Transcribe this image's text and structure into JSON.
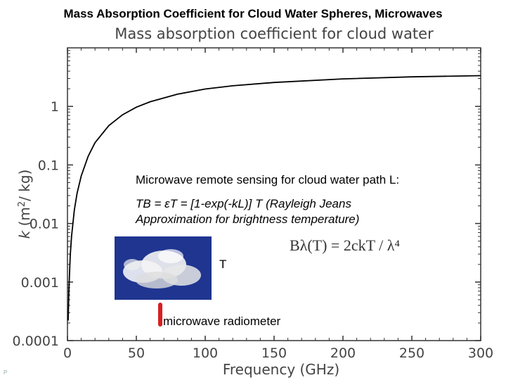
{
  "slide_title": "Mass Absorption Coefficient for Cloud Water Spheres, Microwaves",
  "figure_title": "Mass absorption coefficient for cloud water",
  "note": {
    "heading": "Microwave remote sensing for cloud water path L:",
    "equation_line1": "TB = εT = [1-exp(-kL)] T  (Rayleigh Jeans",
    "equation_line2": "Approximation for brightness temperature)",
    "formula": "Bλ(T) = 2ckT / λ⁴",
    "temperature_label": "T",
    "radiometer_label": "microwave radiometer"
  },
  "footer_mark": "P",
  "colors": {
    "curve": "#000000",
    "axis": "#333333",
    "text": "#444444",
    "photo_bg": "#1f3590",
    "radiometer": "#d62020"
  },
  "chart_data": {
    "type": "line",
    "title": "Mass absorption coefficient for cloud water",
    "xlabel": "Frequency (GHz)",
    "ylabel": "k (m2/ kg)",
    "xscale": "linear",
    "yscale": "log",
    "xlim": [
      0,
      300
    ],
    "ylim": [
      0.0001,
      10
    ],
    "x_ticks": [
      0,
      50,
      100,
      150,
      200,
      250,
      300
    ],
    "x_tick_labels": [
      "0",
      "50",
      "100",
      "150",
      "200",
      "250",
      "300"
    ],
    "y_ticks": [
      0.0001,
      0.001,
      0.01,
      0.1,
      1
    ],
    "y_tick_labels": [
      "0.0001",
      "0.001",
      "0.01",
      "0.1",
      "1"
    ],
    "series": [
      {
        "name": "cloud water",
        "x": [
          0.5,
          1,
          2,
          3,
          5,
          7,
          10,
          15,
          20,
          30,
          40,
          50,
          60,
          80,
          100,
          120,
          150,
          200,
          250,
          300
        ],
        "y": [
          0.00022,
          0.0007,
          0.0028,
          0.0062,
          0.017,
          0.033,
          0.065,
          0.14,
          0.24,
          0.47,
          0.72,
          0.97,
          1.2,
          1.62,
          1.98,
          2.25,
          2.56,
          2.95,
          3.2,
          3.35
        ]
      }
    ]
  }
}
